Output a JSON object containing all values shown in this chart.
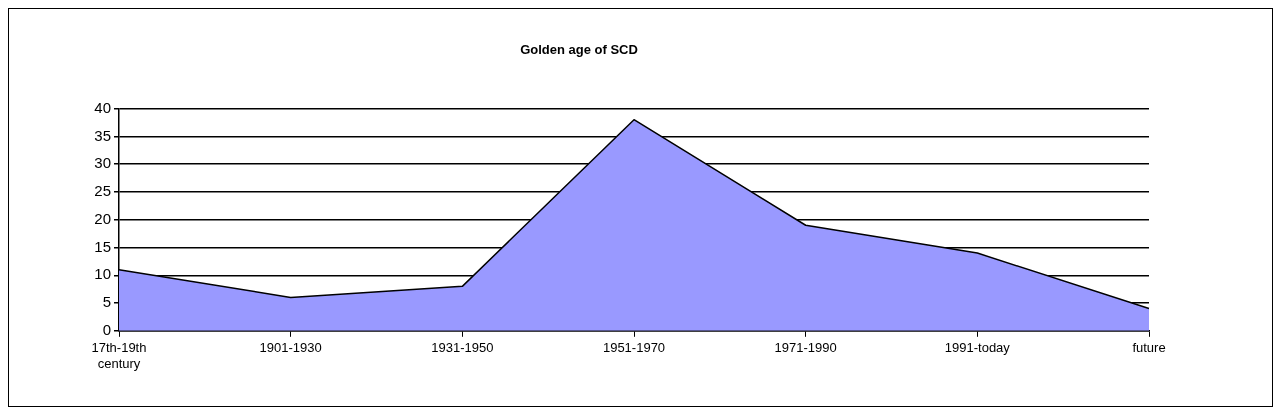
{
  "chart_data": {
    "type": "area",
    "title": "Golden age of SCD",
    "categories": [
      "17th-19th century",
      "1901-1930",
      "1931-1950",
      "1951-1970",
      "1971-1990",
      "1991-today",
      "future"
    ],
    "series": [
      {
        "color": "#9999ff",
        "values": [
          11,
          6,
          8,
          38,
          19,
          14,
          4
        ]
      }
    ],
    "ylim": [
      0,
      40
    ],
    "yticks": [
      0,
      5,
      10,
      15,
      20,
      25,
      30,
      35,
      40
    ],
    "grid": "y",
    "legend": false,
    "marker": "none"
  }
}
